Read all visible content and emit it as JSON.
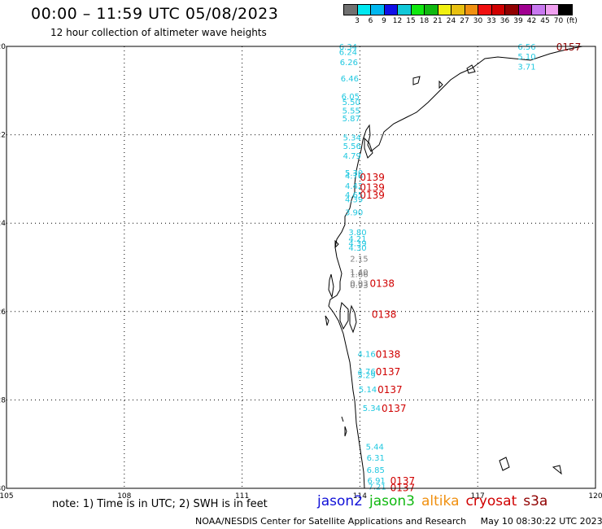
{
  "title": "00:00 – 11:59 UTC 05/08/2023",
  "subtitle": "12 hour collection of altimeter wave heights",
  "legend": {
    "colors": [
      "#707070",
      "#00e8f0",
      "#00b8f0",
      "#1010e8",
      "#10c8d8",
      "#10e810",
      "#10b810",
      "#f0f010",
      "#e8c010",
      "#f09010",
      "#f01010",
      "#d00000",
      "#900000",
      "#a00090",
      "#c878f0",
      "#f0a0f0",
      "#000000"
    ],
    "labels": [
      "3",
      "6",
      "9",
      "12",
      "15",
      "18",
      "21",
      "24",
      "27",
      "30",
      "33",
      "36",
      "39",
      "42",
      "45",
      "70",
      "(ft)"
    ]
  },
  "map": {
    "lon_range": [
      105,
      120
    ],
    "lat_range": [
      -30,
      -20
    ],
    "lon_ticks": [
      "105",
      "108",
      "111",
      "114",
      "117",
      "120"
    ],
    "lat_ticks": [
      "-20",
      "-22",
      "-24",
      "-26",
      "-28",
      "-30"
    ]
  },
  "wave_labels": [
    {
      "text": "6.34",
      "lon": 113.7,
      "lat": -20.0,
      "color": "#20c8e0"
    },
    {
      "text": "6.24",
      "lon": 113.7,
      "lat": -20.12,
      "color": "#20c8e0"
    },
    {
      "text": "6.26",
      "lon": 113.72,
      "lat": -20.35,
      "color": "#20c8e0"
    },
    {
      "text": "6.46",
      "lon": 113.74,
      "lat": -20.72,
      "color": "#20c8e0"
    },
    {
      "text": "6.05",
      "lon": 113.76,
      "lat": -21.12,
      "color": "#20c8e0"
    },
    {
      "text": "5.50",
      "lon": 113.78,
      "lat": -21.25,
      "color": "#20c8e0"
    },
    {
      "text": "5.55",
      "lon": 113.78,
      "lat": -21.45,
      "color": "#20c8e0"
    },
    {
      "text": "5.87",
      "lon": 113.78,
      "lat": -21.62,
      "color": "#20c8e0"
    },
    {
      "text": "5.34",
      "lon": 113.8,
      "lat": -22.05,
      "color": "#20c8e0"
    },
    {
      "text": "5.56",
      "lon": 113.8,
      "lat": -22.25,
      "color": "#20c8e0"
    },
    {
      "text": "4.79",
      "lon": 113.8,
      "lat": -22.47,
      "color": "#20c8e0"
    },
    {
      "text": "5.30",
      "lon": 113.85,
      "lat": -22.85,
      "color": "#20c8e0"
    },
    {
      "text": "4.76",
      "lon": 113.85,
      "lat": -22.92,
      "color": "#20c8e0"
    },
    {
      "text": "4.42",
      "lon": 113.85,
      "lat": -23.15,
      "color": "#20c8e0"
    },
    {
      "text": "4.65",
      "lon": 113.85,
      "lat": -23.35,
      "color": "#20c8e0"
    },
    {
      "text": "4.39",
      "lon": 113.85,
      "lat": -23.45,
      "color": "#20c8e0"
    },
    {
      "text": "3.90",
      "lon": 113.85,
      "lat": -23.75,
      "color": "#20c8e0"
    },
    {
      "text": "3.80",
      "lon": 113.94,
      "lat": -24.2,
      "color": "#20c8e0"
    },
    {
      "text": "4.21",
      "lon": 113.94,
      "lat": -24.35,
      "color": "#20c8e0"
    },
    {
      "text": "4.39",
      "lon": 113.94,
      "lat": -24.45,
      "color": "#20c8e0"
    },
    {
      "text": "4.30",
      "lon": 113.94,
      "lat": -24.55,
      "color": "#20c8e0"
    },
    {
      "text": "2.15",
      "lon": 113.98,
      "lat": -24.8,
      "color": "#808080"
    },
    {
      "text": "1.40",
      "lon": 113.98,
      "lat": -25.1,
      "color": "#808080"
    },
    {
      "text": "1.66",
      "lon": 113.98,
      "lat": -25.15,
      "color": "#808080"
    },
    {
      "text": "0.93",
      "lon": 113.98,
      "lat": -25.35,
      "color": "#808080"
    },
    {
      "text": "0.93",
      "lon": 113.98,
      "lat": -25.4,
      "color": "#808080"
    },
    {
      "text": "4.16",
      "lon": 114.17,
      "lat": -26.95,
      "color": "#20c8e0"
    },
    {
      "text": "4.76",
      "lon": 114.17,
      "lat": -27.35,
      "color": "#20c8e0"
    },
    {
      "text": "5.29",
      "lon": 114.17,
      "lat": -27.43,
      "color": "#20c8e0"
    },
    {
      "text": "5.14",
      "lon": 114.2,
      "lat": -27.75,
      "color": "#20c8e0"
    },
    {
      "text": "5.34",
      "lon": 114.3,
      "lat": -28.18,
      "color": "#20c8e0"
    },
    {
      "text": "5.44",
      "lon": 114.38,
      "lat": -29.05,
      "color": "#20c8e0"
    },
    {
      "text": "6.31",
      "lon": 114.4,
      "lat": -29.3,
      "color": "#20c8e0"
    },
    {
      "text": "6.85",
      "lon": 114.4,
      "lat": -29.58,
      "color": "#20c8e0"
    },
    {
      "text": "6.91",
      "lon": 114.42,
      "lat": -29.82,
      "color": "#20c8e0"
    },
    {
      "text": "7.21",
      "lon": 114.44,
      "lat": -29.95,
      "color": "#20c8e0"
    },
    {
      "text": "6.56",
      "lon": 118.25,
      "lat": -20.0,
      "color": "#20c8e0"
    },
    {
      "text": "5.10",
      "lon": 118.25,
      "lat": -20.22,
      "color": "#20c8e0"
    },
    {
      "text": "3.71",
      "lon": 118.25,
      "lat": -20.45,
      "color": "#20c8e0"
    }
  ],
  "pass_labels": [
    {
      "text": "0139",
      "lon": 114.0,
      "lat": -22.95,
      "color": "#d00000"
    },
    {
      "text": "0139",
      "lon": 114.0,
      "lat": -23.18,
      "color": "#d00000"
    },
    {
      "text": "0139",
      "lon": 114.0,
      "lat": -23.35,
      "color": "#d00000"
    },
    {
      "text": "0138",
      "lon": 114.25,
      "lat": -25.35,
      "color": "#d00000"
    },
    {
      "text": "0138",
      "lon": 114.3,
      "lat": -26.05,
      "color": "#d00000"
    },
    {
      "text": "0138",
      "lon": 114.4,
      "lat": -26.95,
      "color": "#d00000"
    },
    {
      "text": "0137",
      "lon": 114.4,
      "lat": -27.35,
      "color": "#d00000"
    },
    {
      "text": "0137",
      "lon": 114.45,
      "lat": -27.75,
      "color": "#d00000"
    },
    {
      "text": "0137",
      "lon": 114.55,
      "lat": -28.18,
      "color": "#d00000"
    },
    {
      "text": "0137",
      "lon": 114.77,
      "lat": -29.82,
      "color": "#d00000"
    },
    {
      "text": "0137",
      "lon": 114.77,
      "lat": -29.97,
      "color": "#d00000"
    },
    {
      "text": "0157",
      "lon": 119.0,
      "lat": -20.0,
      "color": "#900000"
    }
  ],
  "footer": {
    "note": "note:  1) Time is in UTC;  2) SWH is in feet",
    "satellites": [
      {
        "name": "jason2",
        "color": "#1010d8"
      },
      {
        "name": "jason3",
        "color": "#10b810"
      },
      {
        "name": "altika",
        "color": "#f09010"
      },
      {
        "name": "cryosat",
        "color": "#d00000"
      },
      {
        "name": "s3a",
        "color": "#900000"
      }
    ],
    "credit": "NOAA/NESDIS Center for Satellite Applications and Research",
    "timestamp": "May 10 08:30:22 UTC 2023"
  }
}
